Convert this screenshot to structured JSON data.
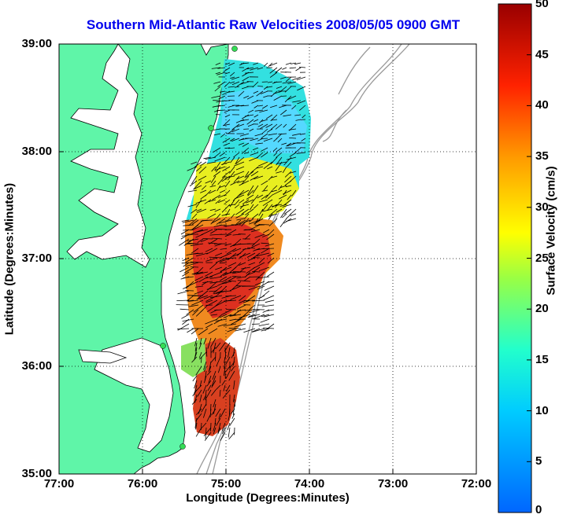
{
  "title": "Southern Mid-Atlantic Raw Velocities 2008/05/05 0900 GMT",
  "xlabel": "Longitude (Degrees:Minutes)",
  "ylabel": "Latitude (Degrees:Minutes)",
  "x_ticks": [
    "77:00",
    "76:00",
    "75:00",
    "74:00",
    "73:00",
    "72:00"
  ],
  "y_ticks": [
    "39:00",
    "38:00",
    "37:00",
    "36:00",
    "35:00"
  ],
  "colorbar": {
    "label": "Surface Velocity (cm/s)",
    "ticks": [
      "50",
      "45",
      "40",
      "35",
      "30",
      "25",
      "20",
      "15",
      "10",
      "5",
      "0"
    ],
    "range": [
      0,
      50
    ]
  },
  "colors": {
    "title": "#0000ee",
    "land": "#5ff5a8",
    "bathymetry": "#999999"
  },
  "map": {
    "lon_range": [
      -77,
      -72
    ],
    "lat_range": [
      35,
      39
    ],
    "grid": true
  }
}
